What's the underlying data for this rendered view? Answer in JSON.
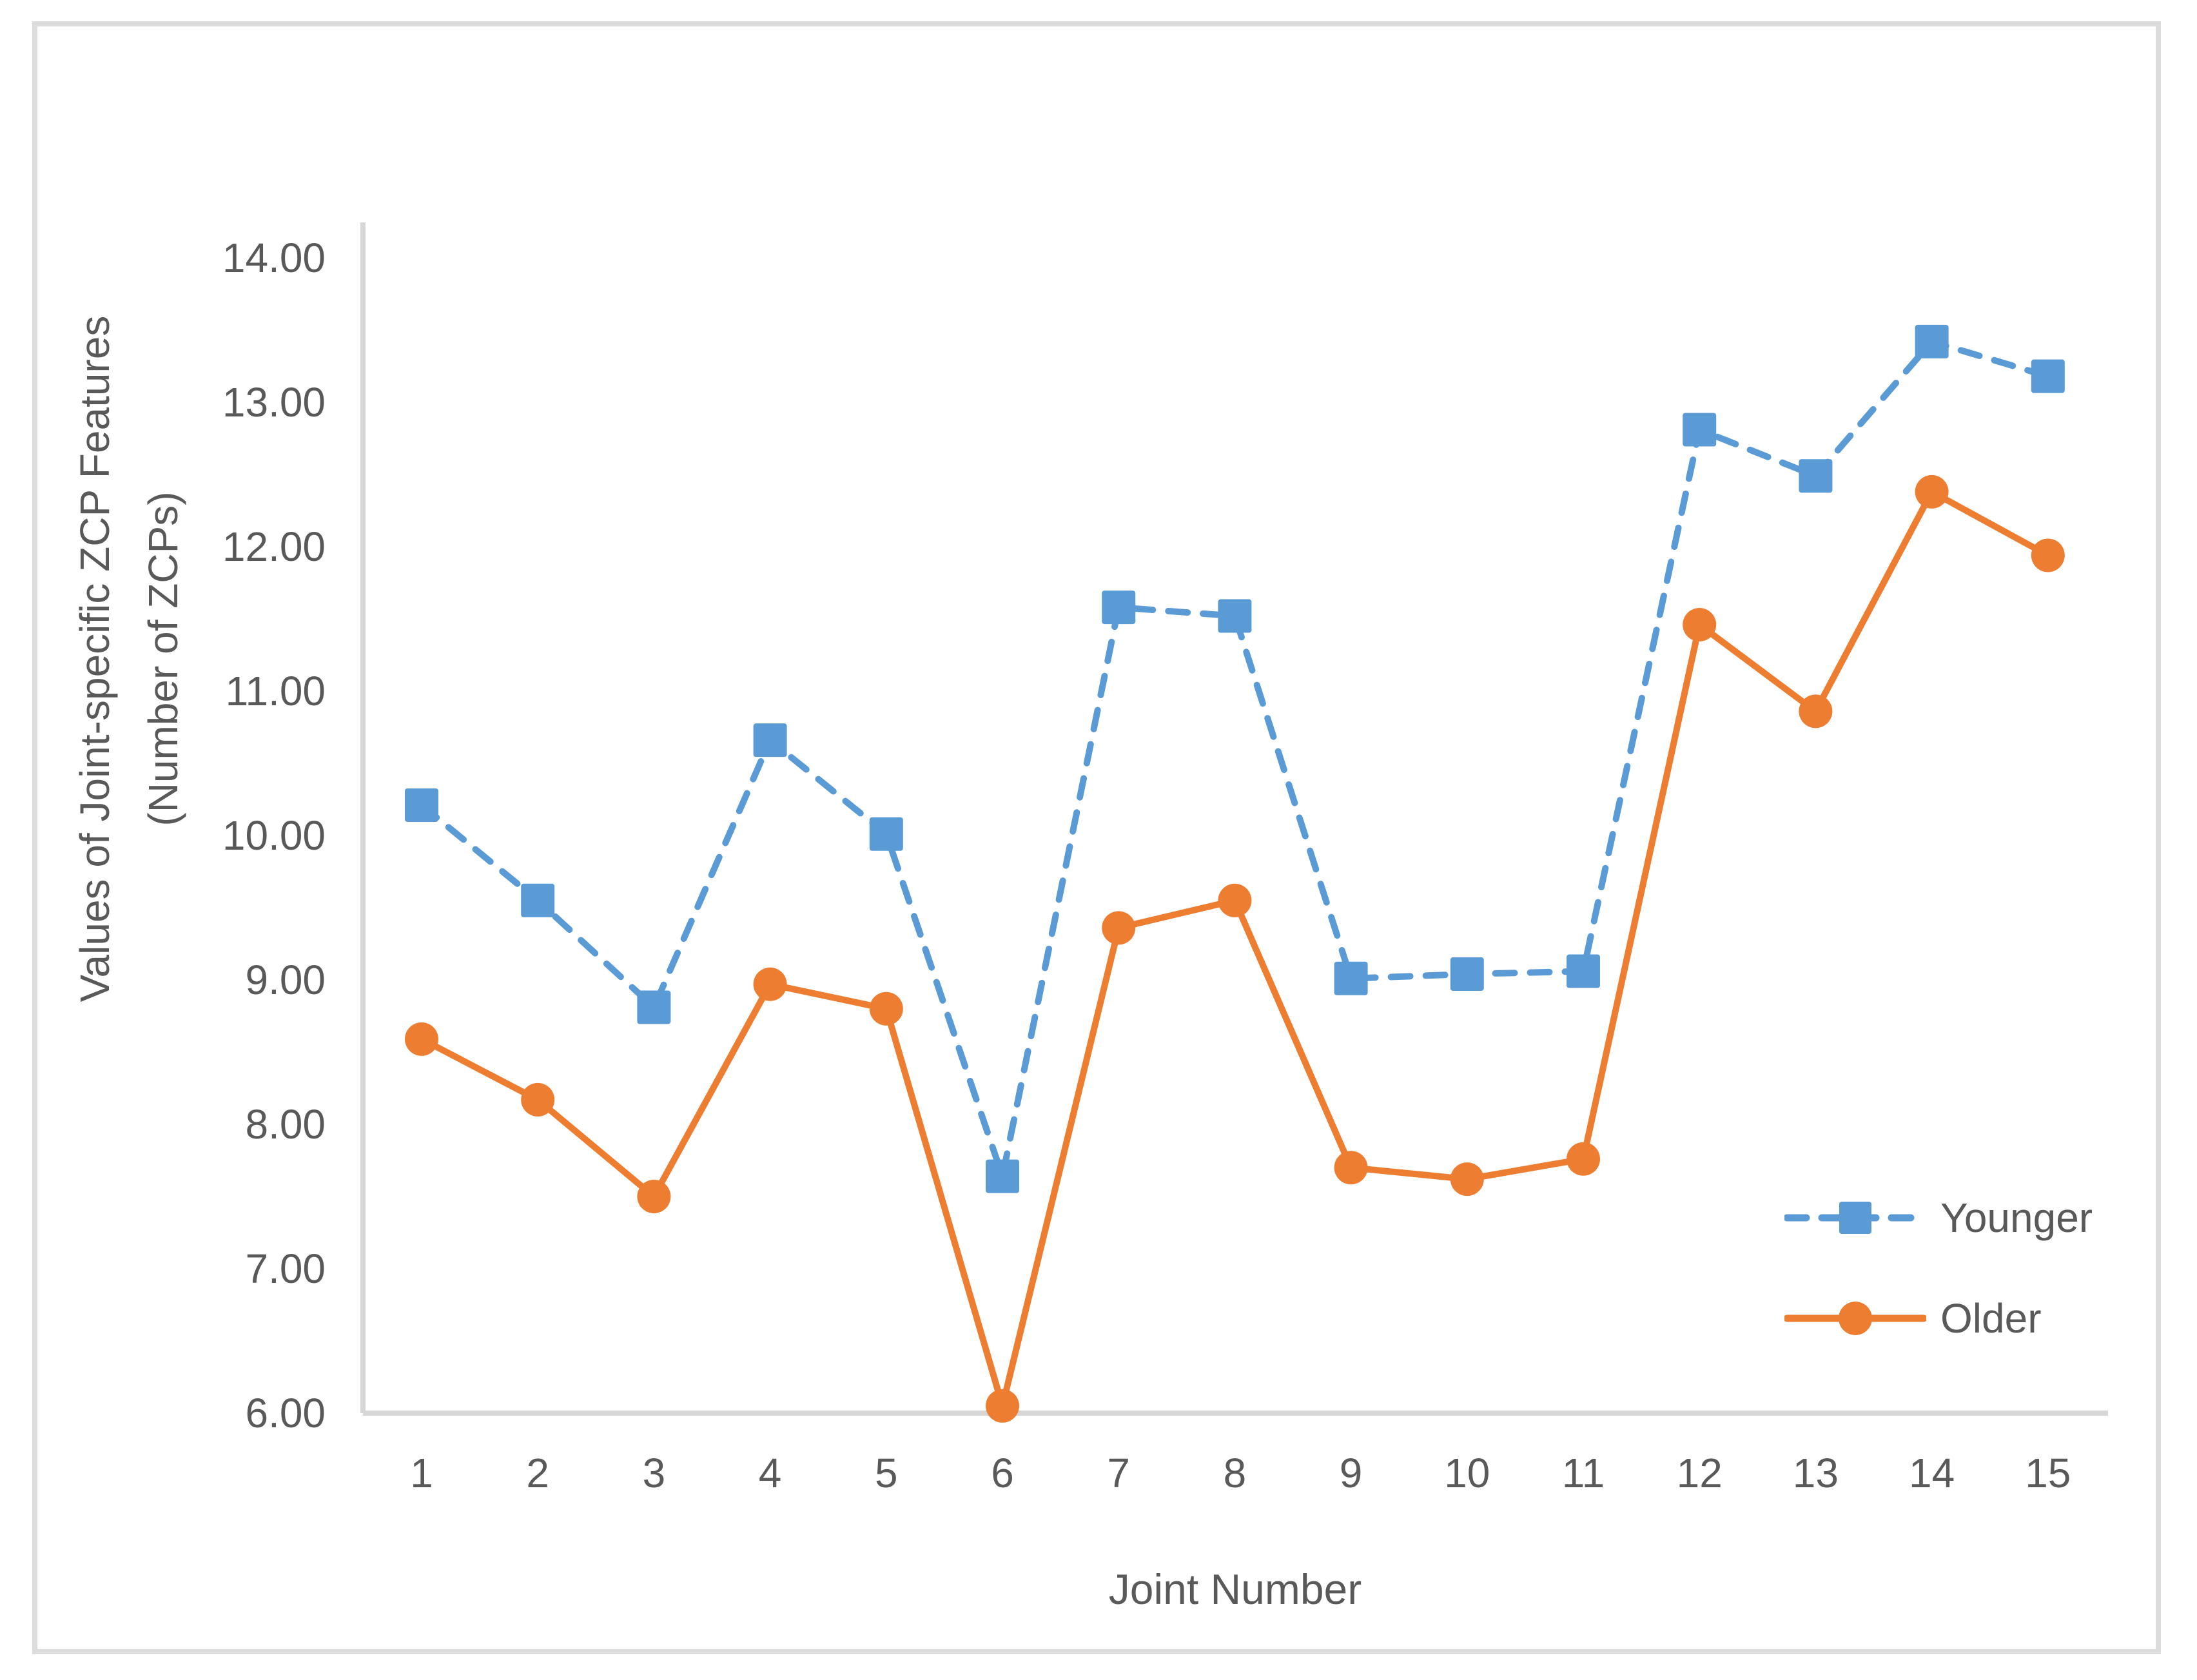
{
  "chart_data": {
    "type": "line",
    "title": "",
    "xlabel": "Joint Number",
    "ylabel": "Values of Joint-specific ZCP Features (Number of ZCPs)",
    "ylabel_lines": [
      "Values of Joint-specific ZCP Features",
      "(Number of ZCPs)"
    ],
    "categories": [
      1,
      2,
      3,
      4,
      5,
      6,
      7,
      8,
      9,
      10,
      11,
      12,
      13,
      14,
      15
    ],
    "series": [
      {
        "name": "Younger",
        "color": "#5B9BD5",
        "line_style": "dashed",
        "marker": "square",
        "values": [
          10.21,
          9.55,
          8.81,
          10.66,
          10.01,
          7.64,
          11.58,
          11.52,
          9.01,
          9.04,
          9.06,
          12.81,
          12.49,
          13.42,
          13.18
        ]
      },
      {
        "name": "Older",
        "color": "#ED7D31",
        "line_style": "solid",
        "marker": "circle",
        "values": [
          8.59,
          8.17,
          7.5,
          8.97,
          8.8,
          6.05,
          9.36,
          9.55,
          7.7,
          7.62,
          7.76,
          11.46,
          10.86,
          12.38,
          11.94
        ]
      }
    ],
    "ylim": [
      6,
      14
    ],
    "y_ticks_top_down": [
      "14.00",
      "13.00",
      "12.00",
      "11.00",
      "10.00",
      "9.00",
      "8.00",
      "7.00",
      "6.00"
    ],
    "y_tick_step": 1,
    "grid": false,
    "legend_position": "inside-right-middle",
    "axis_color": "#d6d6d6",
    "tick_text_color": "#595959",
    "background_color": "#ffffff",
    "border_color": "#dcdcdc"
  }
}
